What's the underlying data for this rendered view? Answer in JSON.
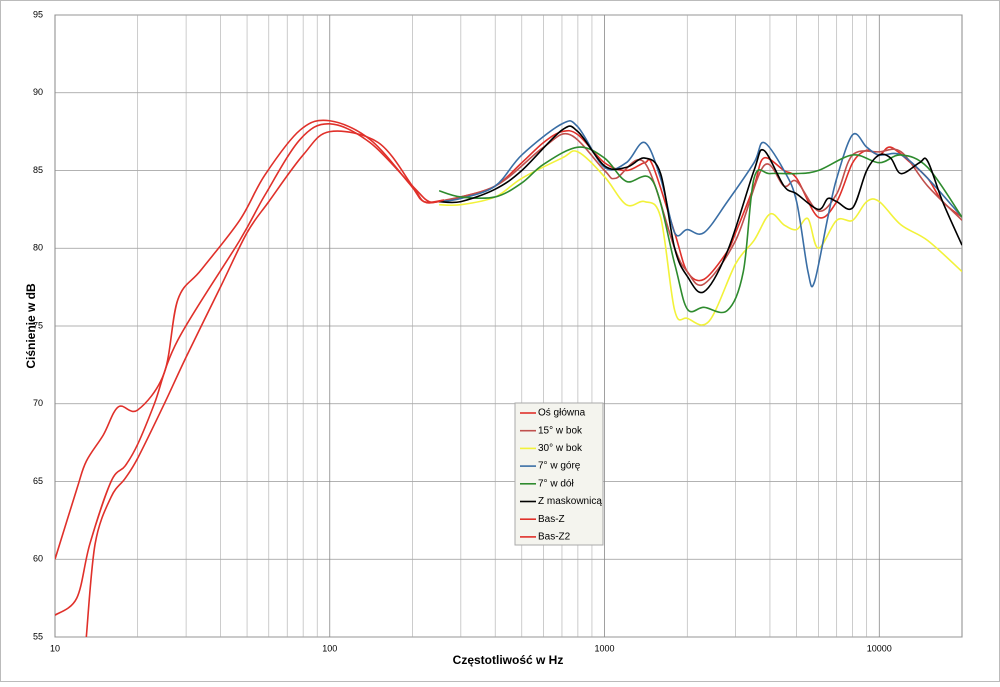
{
  "chart_data": {
    "type": "line",
    "x_label": "Częstotliwość w Hz",
    "y_label": "Ciśnienie w dB",
    "log_x": true,
    "grid": true,
    "minor_grid": true,
    "xlim": [
      10,
      20000
    ],
    "xticks": [
      10,
      100,
      1000,
      10000
    ],
    "ylim": [
      55,
      95
    ],
    "yticks": [
      55,
      60,
      65,
      70,
      75,
      80,
      85,
      90,
      95
    ],
    "series": [
      {
        "name": "Oś główna",
        "color": "#e0302a",
        "x": [
          13,
          14,
          16,
          18,
          20,
          25,
          30,
          40,
          50,
          60,
          80,
          100,
          150,
          200,
          220,
          250,
          300,
          400,
          500,
          600,
          700,
          800,
          1000,
          1200,
          1400,
          1500,
          1800,
          2000,
          2300,
          2800,
          3000,
          3500,
          3800,
          4500,
          5000,
          6000,
          7000,
          8000,
          9000,
          10000,
          11000,
          13000,
          15000,
          17000,
          20000
        ],
        "values": [
          55,
          61,
          64,
          65.2,
          66.5,
          70,
          73,
          77.5,
          81,
          83,
          86,
          87.5,
          86.8,
          84,
          83,
          83,
          83.3,
          84,
          85.5,
          86.8,
          87.5,
          87.3,
          85.5,
          85,
          85.5,
          85.3,
          81,
          78.5,
          78,
          79.8,
          81,
          84,
          85.8,
          85,
          84.5,
          82,
          83,
          85.5,
          86.3,
          86,
          86.5,
          85.5,
          84.5,
          83,
          82
        ]
      },
      {
        "name": "15° w bok",
        "color": "#c0504d",
        "x": [
          250,
          400,
          600,
          750,
          1000,
          1100,
          1400,
          1800,
          2000,
          2300,
          3000,
          3800,
          4500,
          5000,
          6000,
          7000,
          8000,
          10000,
          12000,
          15000,
          20000
        ],
        "values": [
          83,
          84,
          86.5,
          87.3,
          85,
          84.5,
          85.5,
          80,
          78.5,
          77.7,
          80.5,
          85.3,
          84,
          84.3,
          82.4,
          83.5,
          86,
          86.2,
          86.2,
          84,
          81.8
        ]
      },
      {
        "name": "30° w bok",
        "color": "#f2f23a",
        "x": [
          250,
          300,
          400,
          500,
          700,
          800,
          1000,
          1200,
          1400,
          1600,
          1800,
          2000,
          2400,
          3000,
          3500,
          4000,
          4500,
          5000,
          5500,
          6000,
          7000,
          8000,
          9000,
          10000,
          12000,
          15000,
          20000
        ],
        "values": [
          82.8,
          82.8,
          83.3,
          84.5,
          85.8,
          86.2,
          84.6,
          82.8,
          83,
          82,
          76,
          75.5,
          75.3,
          79,
          80.5,
          82.2,
          81.5,
          81.2,
          81.9,
          80,
          81.8,
          81.8,
          83,
          83,
          81.5,
          80.5,
          78.5
        ]
      },
      {
        "name": "7° w górę",
        "color": "#3a6ea5",
        "x": [
          250,
          300,
          400,
          500,
          700,
          800,
          1000,
          1200,
          1400,
          1600,
          1800,
          2000,
          2300,
          2800,
          3500,
          3800,
          4500,
          5000,
          5500,
          5800,
          6500,
          7000,
          8000,
          9000,
          10000,
          12000,
          15000,
          20000
        ],
        "values": [
          83,
          83.2,
          84,
          86,
          88,
          87.8,
          85.2,
          85.5,
          86.8,
          84.5,
          81,
          81.2,
          81,
          83,
          85.5,
          86.8,
          85,
          83,
          78.5,
          77.8,
          82,
          84.5,
          87.3,
          86.5,
          86,
          86,
          84.5,
          82
        ]
      },
      {
        "name": "7° w dół",
        "color": "#2e8b2e",
        "x": [
          250,
          300,
          400,
          500,
          600,
          800,
          1000,
          1200,
          1500,
          1800,
          2000,
          2300,
          2800,
          3200,
          3500,
          4000,
          5000,
          6000,
          8000,
          10000,
          12000,
          15000,
          20000
        ],
        "values": [
          83.7,
          83.3,
          83.3,
          84.2,
          85.4,
          86.5,
          85.8,
          84.3,
          84.3,
          79,
          76.1,
          76.2,
          76,
          78.5,
          84.5,
          84.8,
          84.8,
          85,
          86,
          85.5,
          86,
          85.2,
          82
        ]
      },
      {
        "name": "Z maskownicą",
        "color": "#000000",
        "x": [
          250,
          300,
          400,
          500,
          700,
          800,
          1000,
          1200,
          1400,
          1600,
          1800,
          2000,
          2300,
          2800,
          3500,
          3800,
          4500,
          5000,
          6000,
          6500,
          7000,
          8000,
          9000,
          10000,
          11000,
          12000,
          14000,
          15000,
          17000,
          20000
        ],
        "values": [
          83,
          83,
          83.8,
          85,
          87.6,
          87.5,
          85.3,
          85.2,
          85.8,
          84.8,
          80,
          78.2,
          77.2,
          79.8,
          85,
          86.3,
          84,
          83.5,
          82.5,
          83.2,
          83,
          82.6,
          85,
          86,
          85.8,
          84.8,
          85.5,
          85.6,
          83,
          80.2
        ]
      },
      {
        "name": "Bas-Z",
        "color": "#e0302a",
        "x": [
          10,
          12,
          13,
          15,
          17,
          20,
          25,
          28,
          34,
          47,
          58,
          78,
          100,
          140,
          196,
          220,
          260
        ],
        "values": [
          60,
          64.5,
          66.3,
          68,
          69.8,
          69.6,
          72,
          76.7,
          78.6,
          81.8,
          84.7,
          87.6,
          88.2,
          87,
          84.1,
          83,
          83.1
        ]
      },
      {
        "name": "Bas-Z2",
        "color": "#e0302a",
        "x": [
          10,
          12,
          13.4,
          16,
          18,
          20,
          23,
          28,
          47,
          58,
          78,
          100,
          140,
          200,
          230,
          260
        ],
        "values": [
          56.4,
          57.5,
          61,
          65,
          66,
          67.4,
          70,
          74.1,
          80.5,
          83.4,
          87,
          88,
          86.8,
          84,
          83,
          83.1
        ]
      }
    ]
  }
}
